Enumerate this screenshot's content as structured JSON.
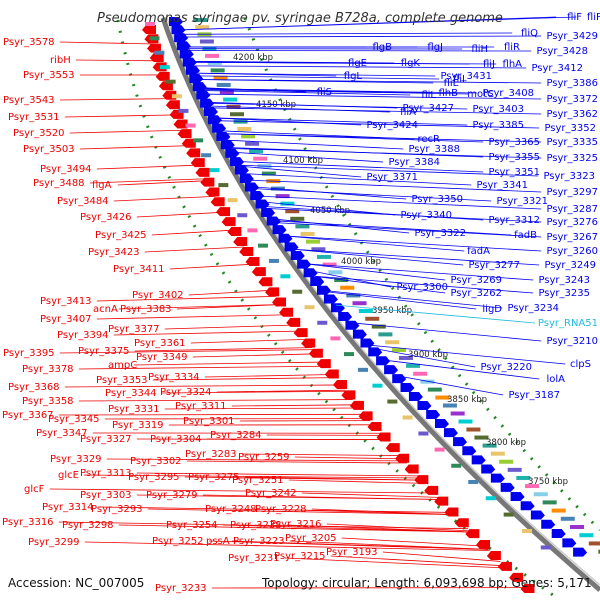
{
  "title": "Pseudomonas syringae pv. syringae B728a, complete genome",
  "accession_text": "Accession: NC_007005",
  "summary_text": "Topology: circular; Length: 6,093,698 bp; Genes: 5,171",
  "colors": {
    "forward": "#0000ee",
    "reverse": "#ee0000",
    "rna": "#22bbdd",
    "backbone": "#777777",
    "gc_dots": "#228822"
  },
  "ticks": [
    "4200 kbp",
    "4150 kbp",
    "4100 kbp",
    "4050 kbp",
    "4000 kbp",
    "3950 kbp",
    "3900 kbp",
    "3850 kbp",
    "3800 kbp",
    "3750 kbp"
  ],
  "left_labels": [
    "Psyr_3578",
    "ribH",
    "Psyr_3553",
    "Psyr_3543",
    "Psyr_3531",
    "Psyr_3520",
    "Psyr_3503",
    "Psyr_3494",
    "Psyr_3488",
    "flgA",
    "Psyr_3484",
    "Psyr_3426",
    "Psyr_3425",
    "Psyr_3423",
    "Psyr_3411",
    "Psyr_3413",
    "Psyr_3402",
    "Psyr_3407",
    "acnA",
    "Psyr_3383",
    "Psyr_3394",
    "Psyr_3377",
    "Psyr_3395",
    "Psyr_3375",
    "Psyr_3361",
    "ampC",
    "Psyr_3378",
    "Psyr_3349",
    "Psyr_3353",
    "Psyr_3368",
    "Psyr_3334",
    "Psyr_3344",
    "Psyr_3358",
    "Psyr_3324",
    "Psyr_3331",
    "Psyr_3311",
    "Psyr_3367",
    "Psyr_3345",
    "Psyr_3347",
    "Psyr_3319",
    "Psyr_3301",
    "Psyr_3327",
    "Psyr_3304",
    "Psyr_3284",
    "Psyr_3329",
    "Psyr_3283",
    "glcE",
    "Psyr_3313",
    "Psyr_3302",
    "Psyr_3259",
    "Psyr_3295",
    "Psyr_3275",
    "glcF",
    "Psyr_3303",
    "Psyr_3279",
    "Psyr_3251",
    "Psyr_3293",
    "Psyr_3242",
    "Psyr_3314",
    "Psyr_3248",
    "Psyr_3228",
    "Psyr_3316",
    "Psyr_3298",
    "Psyr_3254",
    "Psyr_3238",
    "Psyr_3216",
    "Psyr_3299",
    "Psyr_3252",
    "pssA",
    "Psyr_3223",
    "Psyr_3205",
    "Psyr_3231",
    "Psyr_3215",
    "Psyr_3193",
    "Psyr_3233"
  ],
  "right_labels": [
    "fliF",
    "fliP",
    "fliQ",
    "Psyr_3429",
    "Psyr_3428",
    "flgB",
    "flgJ",
    "fliH",
    "fliR",
    "flgE",
    "flgK",
    "fliJ",
    "flhA",
    "Psyr_3412",
    "flgL",
    "fliI",
    "Psyr_3431",
    "Psyr_3386",
    "fliE",
    "fliS",
    "fliL",
    "flhB",
    "motC",
    "Psyr_3408",
    "Psyr_3372",
    "fliA",
    "Psyr_3427",
    "Psyr_3403",
    "Psyr_3362",
    "Psyr_3424",
    "Psyr_3385",
    "Psyr_3352",
    "recR",
    "Psyr_3365",
    "Psyr_3335",
    "Psyr_3388",
    "Psyr_3355",
    "Psyr_3325",
    "Psyr_3384",
    "Psyr_3351",
    "Psyr_3323",
    "Psyr_3371",
    "Psyr_3341",
    "Psyr_3321",
    "Psyr_3297",
    "Psyr_3350",
    "Psyr_3287",
    "Psyr_3340",
    "Psyr_3312",
    "Psyr_3276",
    "Psyr_3322",
    "fadB",
    "Psyr_3267",
    "fadA",
    "Psyr_3260",
    "Psyr_3300",
    "Psyr_3277",
    "Psyr_3249",
    "Psyr_3269",
    "Psyr_3243",
    "Psyr_3262",
    "Psyr_3235",
    "ligD",
    "Psyr_3234",
    "Psyr_RNA51",
    "Psyr_3210",
    "Psyr_3220",
    "clpS",
    "lolA",
    "Psyr_3187"
  ]
}
